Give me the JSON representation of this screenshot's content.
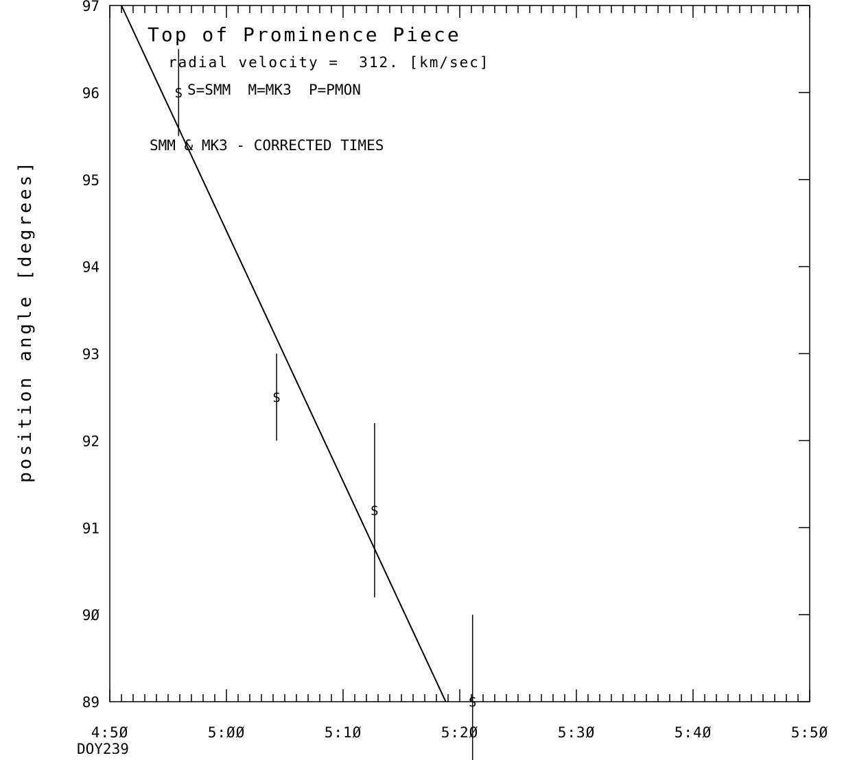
{
  "chart_data": {
    "type": "scatter",
    "title": "Top of Prominence Piece",
    "annotations": [
      "radial velocity =  312. [km/sec]",
      "S=SMM  M=MK3  P=PMON",
      "SMM & MK3 - CORRECTED TIMES"
    ],
    "xlabel": "",
    "x_sublabel": "DOY239",
    "ylabel": "position angle [degrees]",
    "x_unit": "minutes after 4:50",
    "xlim": [
      0,
      60
    ],
    "ylim": [
      89,
      97
    ],
    "x_ticks": [
      {
        "value": 0,
        "label": "4:5Ø"
      },
      {
        "value": 10,
        "label": "5:ØØ"
      },
      {
        "value": 20,
        "label": "5:1Ø"
      },
      {
        "value": 30,
        "label": "5:2Ø"
      },
      {
        "value": 40,
        "label": "5:3Ø"
      },
      {
        "value": 50,
        "label": "5:4Ø"
      },
      {
        "value": 60,
        "label": "5:5Ø"
      }
    ],
    "y_ticks": [
      {
        "value": 89,
        "label": "89"
      },
      {
        "value": 90,
        "label": "9Ø"
      },
      {
        "value": 91,
        "label": "91"
      },
      {
        "value": 92,
        "label": "92"
      },
      {
        "value": 93,
        "label": "93"
      },
      {
        "value": 94,
        "label": "94"
      },
      {
        "value": 95,
        "label": "95"
      },
      {
        "value": 96,
        "label": "96"
      },
      {
        "value": 97,
        "label": "97"
      }
    ],
    "grid": false,
    "series": [
      {
        "marker": "S",
        "points": [
          {
            "x": 5.9,
            "y": 96.0,
            "y_low": 95.5,
            "y_high": 96.5
          },
          {
            "x": 14.3,
            "y": 92.5,
            "y_low": 92.0,
            "y_high": 93.0
          },
          {
            "x": 22.7,
            "y": 91.2,
            "y_low": 90.2,
            "y_high": 92.2
          },
          {
            "x": 31.1,
            "y": 89.0,
            "y_low": 88.0,
            "y_high": 90.0
          }
        ]
      }
    ],
    "fit_line": {
      "x": [
        1.0,
        28.8
      ],
      "y": [
        97.0,
        89.0
      ]
    }
  }
}
